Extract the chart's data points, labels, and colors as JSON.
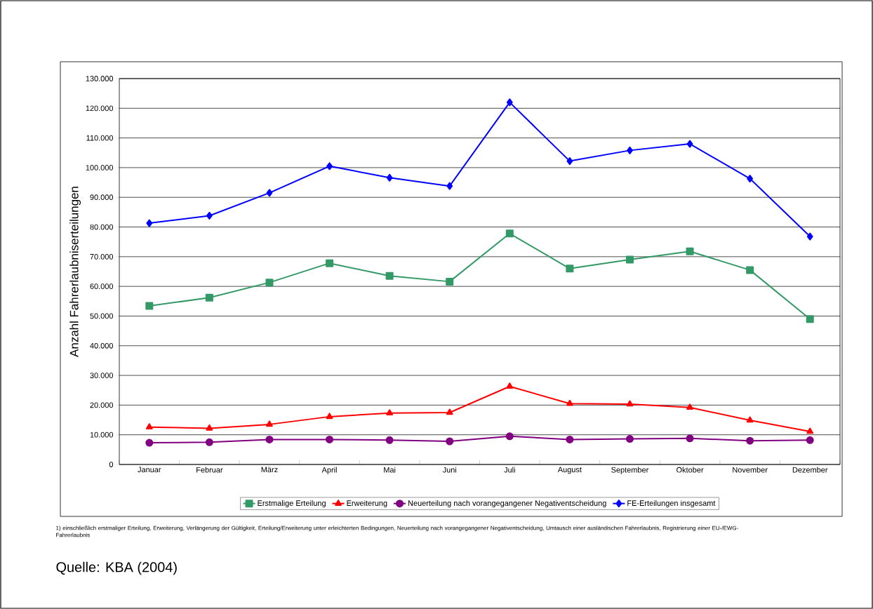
{
  "chart_data": {
    "type": "line",
    "ylabel": "Anzahl Fahrerlaubniserteilungen",
    "categories": [
      "Januar",
      "Februar",
      "März",
      "April",
      "Mai",
      "Juni",
      "Juli",
      "August",
      "September",
      "Oktober",
      "November",
      "Dezember"
    ],
    "series": [
      {
        "name": "Erstmalige Erteilung",
        "color": "#339966",
        "marker": "square",
        "values": [
          53400,
          56200,
          61300,
          67800,
          63500,
          61600,
          77800,
          66000,
          69000,
          71800,
          65500,
          49000
        ]
      },
      {
        "name": "Erweiterung",
        "color": "#ff0000",
        "marker": "triangle",
        "values": [
          12600,
          12200,
          13500,
          16100,
          17300,
          17500,
          26300,
          20500,
          20300,
          19200,
          14900,
          11100
        ]
      },
      {
        "name": "Neuerteilung nach vorangegangener Negativentscheidung",
        "color": "#800080",
        "marker": "circle",
        "values": [
          7300,
          7500,
          8400,
          8400,
          8200,
          7800,
          9500,
          8400,
          8600,
          8800,
          8000,
          8200
        ]
      },
      {
        "name": "FE-Erteilungen insgesamt",
        "color": "#0000ff",
        "marker": "diamond",
        "values": [
          81300,
          83800,
          91500,
          100500,
          96600,
          93800,
          122000,
          102200,
          105800,
          108000,
          96300,
          76800
        ]
      }
    ],
    "ylim": [
      0,
      130000
    ],
    "yticks": [
      0,
      {
        "value": 10000,
        "label": "10.000"
      },
      {
        "value": 20000,
        "label": "20.000"
      },
      {
        "value": 30000,
        "label": "30.000"
      },
      {
        "value": 40000,
        "label": "40.000"
      },
      {
        "value": 50000,
        "label": "50.000"
      },
      {
        "value": 60000,
        "label": "60.000"
      },
      {
        "value": 70000,
        "label": "70.000"
      },
      {
        "value": 80000,
        "label": "80.000"
      },
      {
        "value": 90000,
        "label": "90.000"
      },
      {
        "value": 100000,
        "label": "100.000"
      },
      {
        "value": 110000,
        "label": "110.000"
      },
      {
        "value": 120000,
        "label": "120.000"
      },
      {
        "value": 130000,
        "label": "130.000"
      }
    ],
    "grid": "y",
    "legend": "bottom",
    "line_style": "solid",
    "annotations": [
      "1) einschließlich erstmaliger Erteilung, Erweiterung, Verlängerung der Gültigkeit, Erteilung/Erweiterung unter erleichterten Bedingungen, Neuerteilung nach vorangegangener Negativentscheidung, Umtausch einer ausländischen Fahrerlaubnis, Registrierung einer EU-/EWG-Fahrerlaubnis",
      "Quelle: KBA (2004)"
    ]
  }
}
